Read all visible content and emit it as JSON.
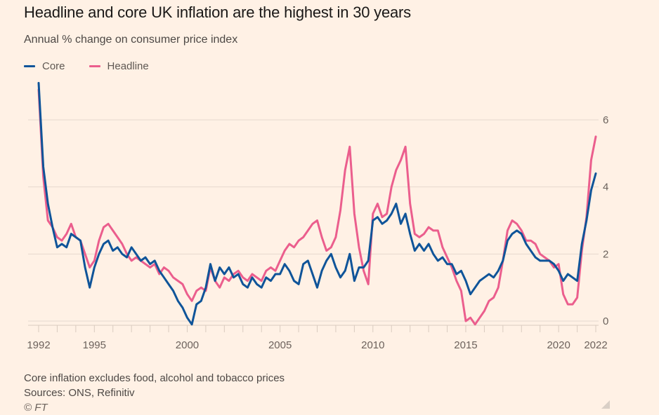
{
  "header": {
    "title": "Headline and core UK inflation are the highest in 30 years",
    "subtitle": "Annual % change on consumer price index"
  },
  "colors": {
    "background": "#fff1e5",
    "core": "#0f5499",
    "headline": "#eb5e8d",
    "gridline": "#e6d9ce",
    "text": "#6b625c"
  },
  "footer": {
    "note": "Core inflation excludes food, alcohol and tobacco prices",
    "sources": "Sources: ONS, Refinitiv",
    "copyright": "© FT"
  },
  "chart_data": {
    "type": "line",
    "title": "Headline and core UK inflation are the highest in 30 years",
    "subtitle": "Annual % change on consumer price index",
    "xlabel": "",
    "ylabel": "",
    "xlim": [
      1992,
      2022
    ],
    "ylim": [
      0,
      6
    ],
    "y_ticks": [
      0,
      2,
      4,
      6
    ],
    "y_axis_position": "right",
    "x_tick_labels": [
      "1992",
      "1995",
      "2000",
      "2005",
      "2010",
      "2015",
      "2020",
      "2022"
    ],
    "x_tick_label_years": [
      1992,
      1995,
      2000,
      2005,
      2010,
      2015,
      2020,
      2022
    ],
    "x_minor_ticks_every_year": true,
    "grid": true,
    "legend": {
      "position": "top-left",
      "entries": [
        "Core",
        "Headline"
      ]
    },
    "x": [
      1992.0,
      1992.25,
      1992.5,
      1992.75,
      1993.0,
      1993.25,
      1993.5,
      1993.75,
      1994.0,
      1994.25,
      1994.5,
      1994.75,
      1995.0,
      1995.25,
      1995.5,
      1995.75,
      1996.0,
      1996.25,
      1996.5,
      1996.75,
      1997.0,
      1997.25,
      1997.5,
      1997.75,
      1998.0,
      1998.25,
      1998.5,
      1998.75,
      1999.0,
      1999.25,
      1999.5,
      1999.75,
      2000.0,
      2000.25,
      2000.5,
      2000.75,
      2001.0,
      2001.25,
      2001.5,
      2001.75,
      2002.0,
      2002.25,
      2002.5,
      2002.75,
      2003.0,
      2003.25,
      2003.5,
      2003.75,
      2004.0,
      2004.25,
      2004.5,
      2004.75,
      2005.0,
      2005.25,
      2005.5,
      2005.75,
      2006.0,
      2006.25,
      2006.5,
      2006.75,
      2007.0,
      2007.25,
      2007.5,
      2007.75,
      2008.0,
      2008.25,
      2008.5,
      2008.75,
      2009.0,
      2009.25,
      2009.5,
      2009.75,
      2010.0,
      2010.25,
      2010.5,
      2010.75,
      2011.0,
      2011.25,
      2011.5,
      2011.75,
      2012.0,
      2012.25,
      2012.5,
      2012.75,
      2013.0,
      2013.25,
      2013.5,
      2013.75,
      2014.0,
      2014.25,
      2014.5,
      2014.75,
      2015.0,
      2015.25,
      2015.5,
      2015.75,
      2016.0,
      2016.25,
      2016.5,
      2016.75,
      2017.0,
      2017.25,
      2017.5,
      2017.75,
      2018.0,
      2018.25,
      2018.5,
      2018.75,
      2019.0,
      2019.25,
      2019.5,
      2019.75,
      2020.0,
      2020.25,
      2020.5,
      2020.75,
      2021.0,
      2021.25,
      2021.5,
      2021.75,
      2022.0
    ],
    "series": [
      {
        "name": "Core",
        "color": "#0f5499",
        "values": [
          7.1,
          4.6,
          3.5,
          2.8,
          2.2,
          2.3,
          2.2,
          2.6,
          2.5,
          2.4,
          1.6,
          1.0,
          1.6,
          2.0,
          2.3,
          2.4,
          2.1,
          2.2,
          2.0,
          1.9,
          2.2,
          2.0,
          1.8,
          1.9,
          1.7,
          1.8,
          1.5,
          1.3,
          1.1,
          0.9,
          0.6,
          0.4,
          0.1,
          -0.1,
          0.5,
          0.6,
          1.0,
          1.7,
          1.2,
          1.6,
          1.4,
          1.6,
          1.3,
          1.4,
          1.1,
          1.0,
          1.3,
          1.1,
          1.0,
          1.3,
          1.2,
          1.4,
          1.4,
          1.7,
          1.5,
          1.2,
          1.1,
          1.7,
          1.8,
          1.4,
          1.0,
          1.5,
          1.8,
          2.0,
          1.6,
          1.3,
          1.5,
          2.0,
          1.2,
          1.6,
          1.6,
          1.8,
          3.0,
          3.1,
          2.9,
          3.0,
          3.2,
          3.5,
          2.9,
          3.2,
          2.6,
          2.1,
          2.3,
          2.1,
          2.3,
          2.0,
          1.8,
          1.9,
          1.7,
          1.7,
          1.4,
          1.5,
          1.2,
          0.8,
          1.0,
          1.2,
          1.3,
          1.4,
          1.3,
          1.5,
          1.8,
          2.4,
          2.6,
          2.7,
          2.6,
          2.3,
          2.1,
          1.9,
          1.8,
          1.8,
          1.8,
          1.7,
          1.5,
          1.2,
          1.4,
          1.3,
          1.2,
          2.3,
          3.0,
          3.9,
          4.4
        ]
      },
      {
        "name": "Headline",
        "color": "#eb5e8d",
        "values": [
          6.9,
          4.3,
          3.0,
          2.8,
          2.5,
          2.4,
          2.6,
          2.9,
          2.5,
          2.4,
          2.0,
          1.6,
          1.8,
          2.4,
          2.8,
          2.9,
          2.7,
          2.5,
          2.3,
          2.0,
          1.8,
          1.9,
          1.8,
          1.7,
          1.6,
          1.7,
          1.4,
          1.6,
          1.5,
          1.3,
          1.2,
          1.1,
          0.8,
          0.6,
          0.9,
          1.0,
          0.9,
          1.6,
          1.2,
          1.0,
          1.3,
          1.2,
          1.4,
          1.5,
          1.3,
          1.2,
          1.4,
          1.3,
          1.2,
          1.5,
          1.6,
          1.5,
          1.8,
          2.1,
          2.3,
          2.2,
          2.4,
          2.5,
          2.7,
          2.9,
          3.0,
          2.5,
          2.1,
          2.2,
          2.5,
          3.3,
          4.5,
          5.2,
          3.2,
          2.2,
          1.5,
          1.1,
          3.2,
          3.5,
          3.1,
          3.2,
          4.0,
          4.5,
          4.8,
          5.2,
          3.5,
          2.6,
          2.5,
          2.6,
          2.8,
          2.7,
          2.7,
          2.2,
          1.9,
          1.6,
          1.2,
          0.9,
          0.0,
          0.1,
          -0.1,
          0.1,
          0.3,
          0.6,
          0.7,
          1.0,
          1.8,
          2.7,
          3.0,
          2.9,
          2.7,
          2.4,
          2.4,
          2.3,
          2.0,
          1.9,
          1.8,
          1.6,
          1.7,
          0.8,
          0.5,
          0.5,
          0.7,
          2.1,
          3.1,
          4.8,
          5.5
        ]
      }
    ]
  }
}
